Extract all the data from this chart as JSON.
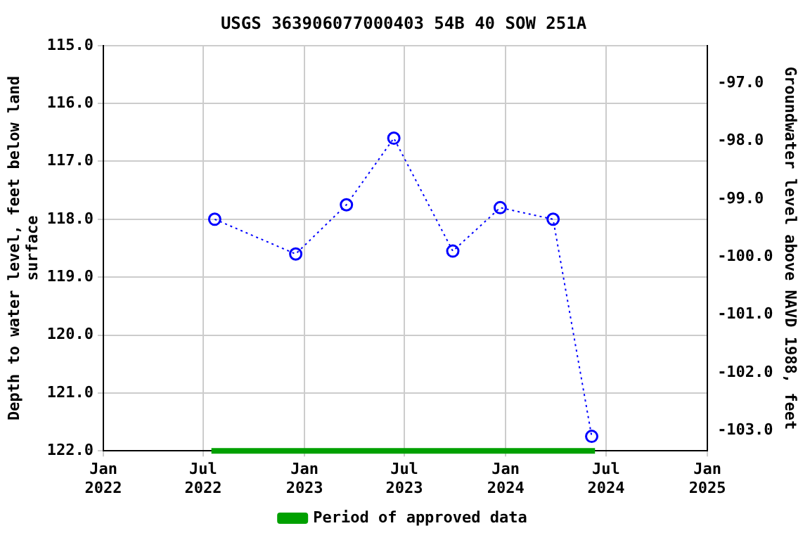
{
  "chart_data": {
    "type": "line",
    "title": "USGS 363906077000403 54B 40 SOW 251A",
    "xlabel": null,
    "ylabel": "Depth to water level, feet below land surface",
    "y2label": "Groundwater level above NAVD 1988, feet",
    "x": [
      "2022-07-22",
      "2022-12-16",
      "2023-03-18",
      "2023-06-12",
      "2023-09-27",
      "2023-12-22",
      "2024-03-27",
      "2024-06-05"
    ],
    "series": [
      {
        "color": "#0000ff",
        "values": [
          118.0,
          118.6,
          117.75,
          116.6,
          118.55,
          117.8,
          118.0,
          121.75
        ]
      },
      {
        "name": "Period of approved data",
        "color": "#00a000",
        "x": [
          "2022-07-16",
          "2024-06-11"
        ],
        "values": [
          122,
          122
        ],
        "marker": "none",
        "line_style": "solid"
      }
    ],
    "xlim": [
      "2022-01-01",
      "2025-01-01"
    ],
    "xticks": [
      {
        "value": "2022-01-01",
        "label": "Jan\n2022"
      },
      {
        "value": "2022-07-01",
        "label": "Jul\n2022"
      },
      {
        "value": "2023-01-01",
        "label": "Jan\n2023"
      },
      {
        "value": "2023-07-01",
        "label": "Jul\n2023"
      },
      {
        "value": "2024-01-01",
        "label": "Jan\n2024"
      },
      {
        "value": "2024-07-01",
        "label": "Jul\n2024"
      },
      {
        "value": "2025-01-01",
        "label": "Jan\n2025"
      }
    ],
    "ylim": [
      122,
      115
    ],
    "yticks": [
      {
        "value": 115,
        "label": "115.0"
      },
      {
        "value": 116,
        "label": "116.0"
      },
      {
        "value": 117,
        "label": "117.0"
      },
      {
        "value": 118,
        "label": "118.0"
      },
      {
        "value": 119,
        "label": "119.0"
      },
      {
        "value": 120,
        "label": "120.0"
      },
      {
        "value": 121,
        "label": "121.0"
      },
      {
        "value": 122,
        "label": "122.0"
      }
    ],
    "y2lim": [
      -103.35,
      -96.35
    ],
    "y2ticks": [
      {
        "value": -97,
        "label": "-97.0"
      },
      {
        "value": -98,
        "label": "-98.0"
      },
      {
        "value": -99,
        "label": "-99.0"
      },
      {
        "value": -100,
        "label": "-100.0"
      },
      {
        "value": -101,
        "label": "-101.0"
      },
      {
        "value": -102,
        "label": "-102.0"
      },
      {
        "value": -103,
        "label": "-103.0"
      }
    ],
    "grid": true,
    "legend": "bottom",
    "marker": "circle",
    "line_style": "dotted"
  }
}
